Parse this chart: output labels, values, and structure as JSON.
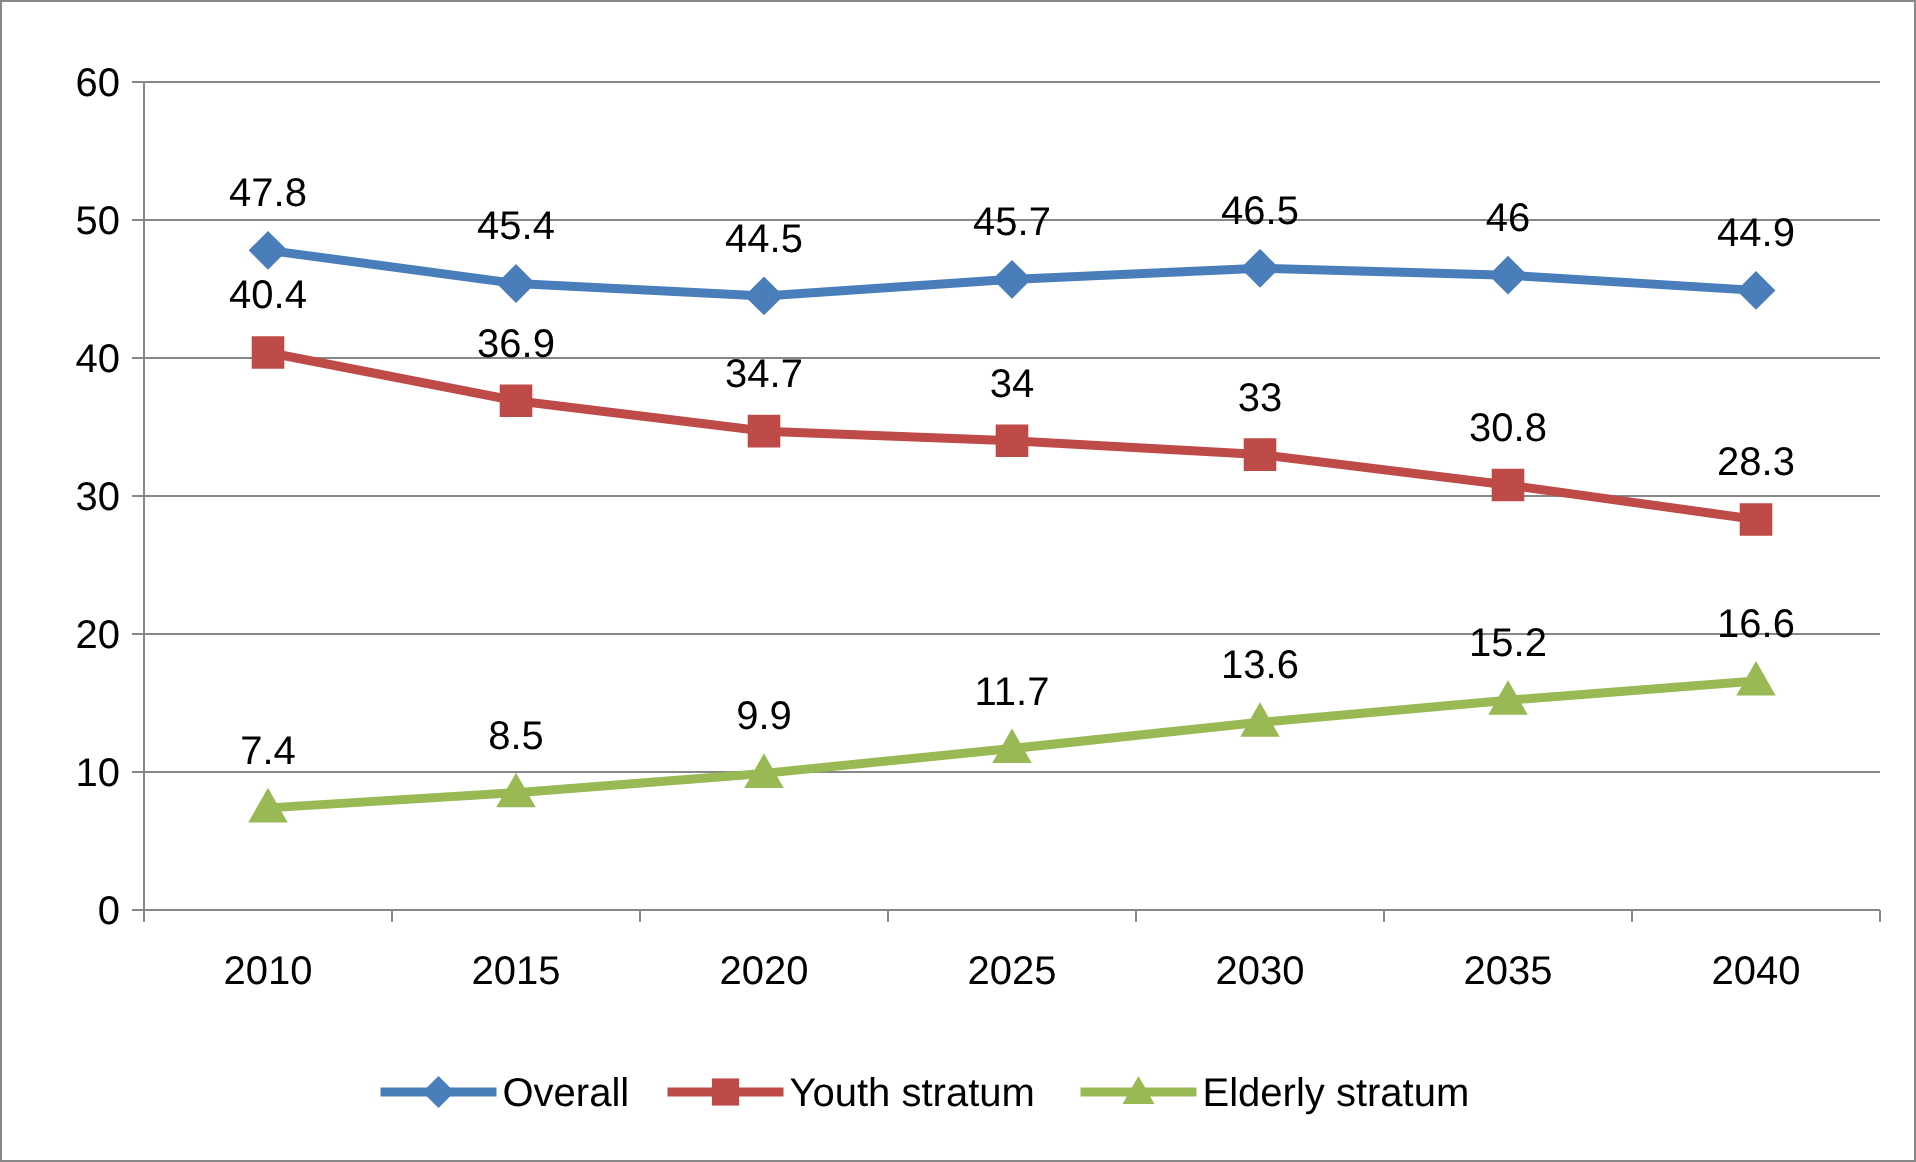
{
  "chart_data": {
    "type": "line",
    "categories": [
      "2010",
      "2015",
      "2020",
      "2025",
      "2030",
      "2035",
      "2040"
    ],
    "series": [
      {
        "name": "Overall",
        "color": "#4a7ebb",
        "marker": "diamond",
        "values": [
          47.8,
          45.4,
          44.5,
          45.7,
          46.5,
          46,
          44.9
        ]
      },
      {
        "name": "Youth stratum",
        "color": "#be4b48",
        "marker": "square",
        "values": [
          40.4,
          36.9,
          34.7,
          34,
          33,
          30.8,
          28.3
        ]
      },
      {
        "name": "Elderly stratum",
        "color": "#98b954",
        "marker": "triangle",
        "values": [
          7.4,
          8.5,
          9.9,
          11.7,
          13.6,
          15.2,
          16.6
        ]
      }
    ],
    "ylim": [
      0,
      60
    ],
    "yticks": [
      0,
      10,
      20,
      30,
      40,
      50,
      60
    ],
    "grid": "y",
    "legend": "bottom",
    "data_labels": true
  }
}
